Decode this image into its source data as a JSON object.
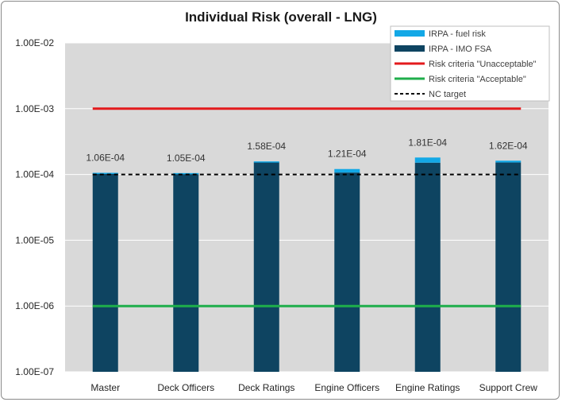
{
  "chart_data": {
    "type": "bar",
    "title": "Individual Risk  (overall - LNG)",
    "y_scale": "log",
    "ylim": [
      1e-07,
      0.01
    ],
    "y_tick_labels": [
      "1.00E-02",
      "1.00E-03",
      "1.00E-04",
      "1.00E-05",
      "1.00E-06",
      "1.00E-07"
    ],
    "y_tick_values": [
      0.01,
      0.001,
      0.0001,
      1e-05,
      1e-06,
      1e-07
    ],
    "categories": [
      "Master",
      "Deck Officers",
      "Deck Ratings",
      "Engine Officers",
      "Engine Ratings",
      "Support Crew"
    ],
    "series": [
      {
        "name": "IRPA - IMO FSA",
        "color": "#0e4461",
        "stacked_base": true,
        "values": [
          0.000103,
          0.000103,
          0.000153,
          0.000107,
          0.000151,
          0.000152
        ]
      },
      {
        "name": "IRPA - fuel risk",
        "color": "#13a8e6",
        "values": [
          3e-06,
          2e-06,
          5e-06,
          1.4e-05,
          3e-05,
          1e-05
        ]
      }
    ],
    "totals": [
      0.000106,
      0.000105,
      0.000158,
      0.000121,
      0.000181,
      0.000162
    ],
    "total_labels": [
      "1.06E-04",
      "1.05E-04",
      "1.58E-04",
      "1.21E-04",
      "1.81E-04",
      "1.62E-04"
    ],
    "lines": [
      {
        "name": "Risk criteria \"Unacceptable\"",
        "value": 0.001,
        "color": "#e31a1c",
        "style": "solid"
      },
      {
        "name": "Risk criteria \"Acceptable\"",
        "value": 1e-06,
        "color": "#1fae4b",
        "style": "solid"
      },
      {
        "name": "NC target",
        "value": 0.0001,
        "color": "#000000",
        "style": "dashed"
      }
    ],
    "legend_position": "top-right",
    "grid": true
  }
}
